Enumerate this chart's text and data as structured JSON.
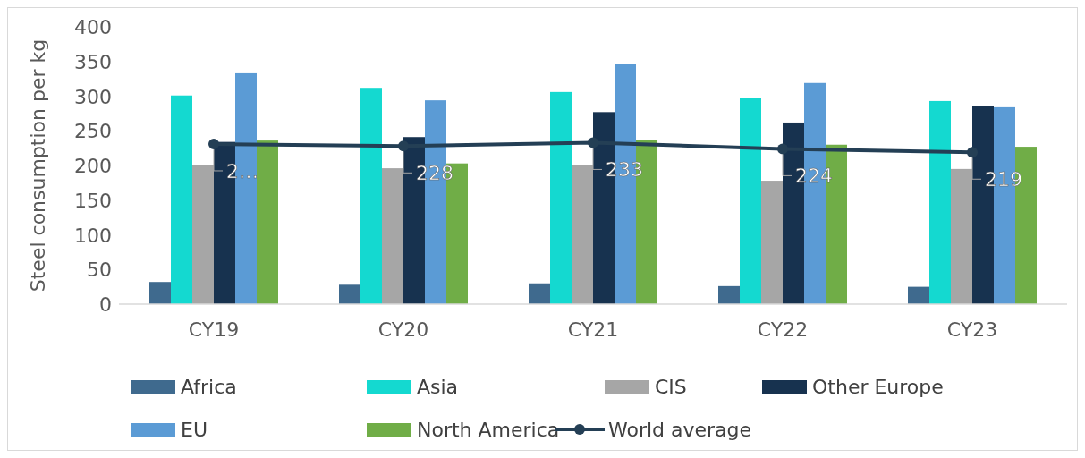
{
  "chart_data": {
    "type": "bar",
    "ylabel": "Steel consumption per kg",
    "categories": [
      "CY19",
      "CY20",
      "CY21",
      "CY22",
      "CY23"
    ],
    "series": [
      {
        "name": "Africa",
        "color": "#3f6a8e",
        "values": [
          32,
          28,
          30,
          26,
          25
        ]
      },
      {
        "name": "Asia",
        "color": "#14d9d0",
        "values": [
          301,
          312,
          306,
          297,
          293
        ]
      },
      {
        "name": "CIS",
        "color": "#a6a6a6",
        "values": [
          200,
          196,
          201,
          178,
          195
        ]
      },
      {
        "name": "Other Europe",
        "color": "#17324f",
        "values": [
          234,
          241,
          277,
          262,
          286
        ]
      },
      {
        "name": "EU",
        "color": "#5b9bd5",
        "values": [
          333,
          294,
          346,
          319,
          284
        ]
      },
      {
        "name": "North America",
        "color": "#70ad47",
        "values": [
          236,
          203,
          237,
          230,
          227
        ]
      },
      {
        "name": "World average",
        "type": "line",
        "color": "#243f55",
        "marker": "circle",
        "values": [
          231,
          228,
          233,
          224,
          219
        ],
        "value_labels": [
          "2…",
          "228",
          "233",
          "224",
          "219"
        ]
      }
    ],
    "ylim": [
      0,
      400
    ],
    "yticks": [
      0,
      50,
      100,
      150,
      200,
      250,
      300,
      350,
      400
    ],
    "grid": false,
    "legend": "bottom"
  }
}
